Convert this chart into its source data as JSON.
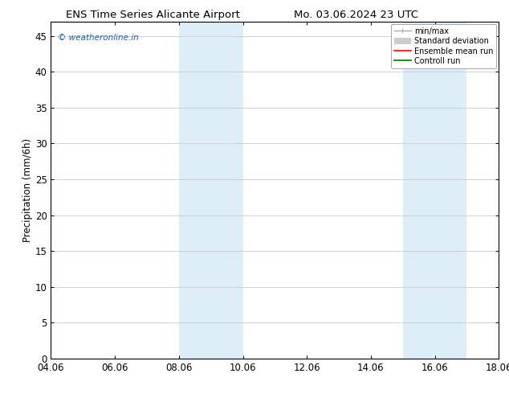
{
  "title_left": "ENS Time Series Alicante Airport",
  "title_right": "Mo. 03.06.2024 23 UTC",
  "ylabel": "Precipitation (mm/6h)",
  "xlabel_ticks": [
    "04.06",
    "06.06",
    "08.06",
    "10.06",
    "12.06",
    "14.06",
    "16.06",
    "18.06"
  ],
  "xtick_positions": [
    0,
    2,
    4,
    6,
    8,
    10,
    12,
    14
  ],
  "xlim": [
    0,
    14
  ],
  "ylim": [
    0,
    47
  ],
  "yticks": [
    0,
    5,
    10,
    15,
    20,
    25,
    30,
    35,
    40,
    45
  ],
  "shaded_bands": [
    {
      "x_start": 4.0,
      "x_end": 6.0,
      "color": "#ddeef8"
    },
    {
      "x_start": 11.0,
      "x_end": 13.0,
      "color": "#ddeef8"
    }
  ],
  "watermark_text": "© weatheronline.in",
  "watermark_color": "#1a5fa8",
  "legend_entries": [
    {
      "label": "min/max",
      "color": "#aaaaaa",
      "lw": 1.0
    },
    {
      "label": "Standard deviation",
      "color": "#cccccc",
      "lw": 5
    },
    {
      "label": "Ensemble mean run",
      "color": "#ff0000",
      "lw": 1.2
    },
    {
      "label": "Controll run",
      "color": "#007700",
      "lw": 1.2
    }
  ],
  "bg_color": "#ffffff",
  "grid_color": "#cccccc",
  "font_size": 8.5,
  "title_font_size": 9.5
}
